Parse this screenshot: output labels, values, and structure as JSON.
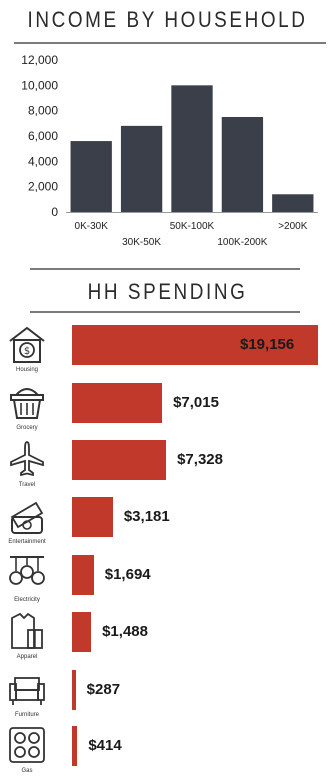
{
  "income": {
    "title": "INCOME BY HOUSEHOLD"
  },
  "spending": {
    "title": "HH SPENDING"
  },
  "colors": {
    "income_bar": "#3a3f49",
    "spending_bar": "#c0392b",
    "rule": "#7a7a7a"
  },
  "chart_data": [
    {
      "type": "bar",
      "title": "INCOME BY HOUSEHOLD",
      "categories": [
        "0K-30K",
        "30K-50K",
        "50K-100K",
        "100K-200K",
        ">200K"
      ],
      "values": [
        5600,
        6800,
        10000,
        7500,
        1400
      ],
      "ylim": [
        0,
        12000
      ],
      "yticks": [
        "0",
        "2,000",
        "4,000",
        "6,000",
        "8,000",
        "10,000",
        "12,000"
      ],
      "grid": false,
      "xlabel": "",
      "ylabel": ""
    },
    {
      "type": "bar",
      "title": "HH SPENDING",
      "orientation": "horizontal",
      "categories": [
        "Housing",
        "Grocery",
        "Travel",
        "Entertainment",
        "Electricity",
        "Apparel",
        "Furniture",
        "Gas"
      ],
      "values": [
        19156,
        7015,
        7328,
        3181,
        1694,
        1488,
        287,
        414
      ],
      "value_labels": [
        "$19,156",
        "$7,015",
        "$7,328",
        "$3,181",
        "$1,694",
        "$1,488",
        "$287",
        "$414"
      ],
      "icons": [
        "house-dollar-icon",
        "shopping-basket-icon",
        "airplane-icon",
        "ticket-icon",
        "light-bulbs-icon",
        "clothes-icon",
        "sofa-icon",
        "stove-icon"
      ],
      "xlim": [
        0,
        19156
      ]
    }
  ]
}
